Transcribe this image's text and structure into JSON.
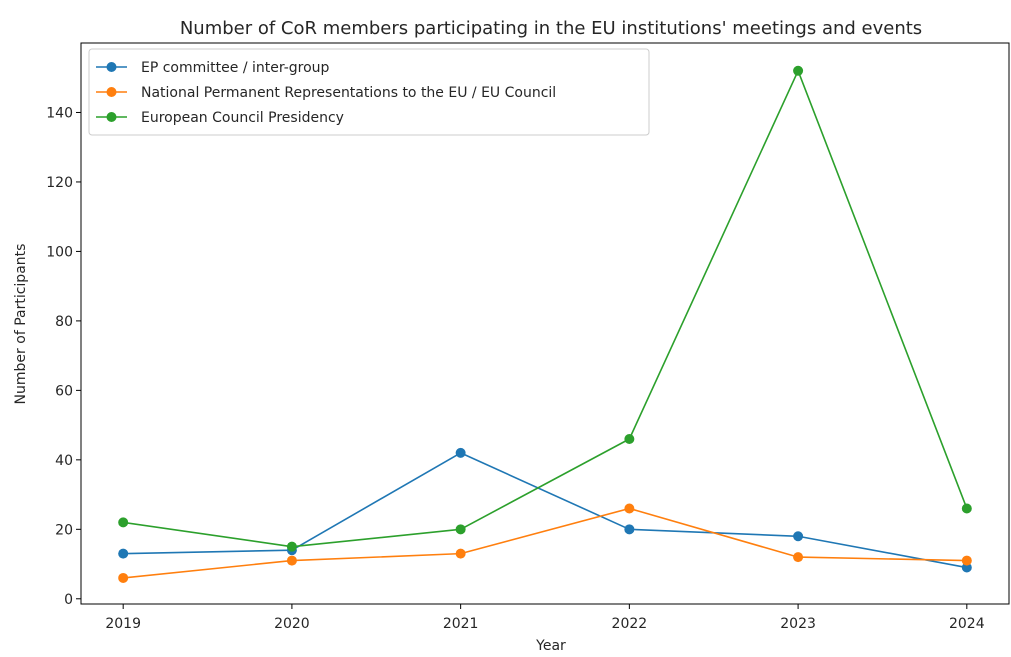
{
  "chart_data": {
    "type": "line",
    "title": "Number of CoR members participating in the EU institutions' meetings and events",
    "xlabel": "Year",
    "ylabel": "Number of Participants",
    "x": [
      2019,
      2020,
      2021,
      2022,
      2023,
      2024
    ],
    "x_tick_labels": [
      "2019",
      "2020",
      "2021",
      "2022",
      "2023",
      "2024"
    ],
    "y_ticks": [
      0,
      20,
      40,
      60,
      80,
      100,
      120,
      140
    ],
    "y_tick_labels": [
      "0",
      "20",
      "40",
      "60",
      "80",
      "100",
      "120",
      "140"
    ],
    "ylim": [
      -1.5,
      160
    ],
    "grid": false,
    "legend_position": "top-left",
    "series": [
      {
        "name": "EP committee / inter-group",
        "color": "#1f77b4",
        "values": [
          13,
          14,
          42,
          20,
          18,
          9
        ]
      },
      {
        "name": "National Permanent Representations to the EU / EU Council",
        "color": "#ff7f0e",
        "values": [
          6,
          11,
          13,
          26,
          12,
          11
        ]
      },
      {
        "name": "European Council Presidency",
        "color": "#2ca02c",
        "values": [
          22,
          15,
          20,
          46,
          152,
          26
        ]
      }
    ]
  }
}
